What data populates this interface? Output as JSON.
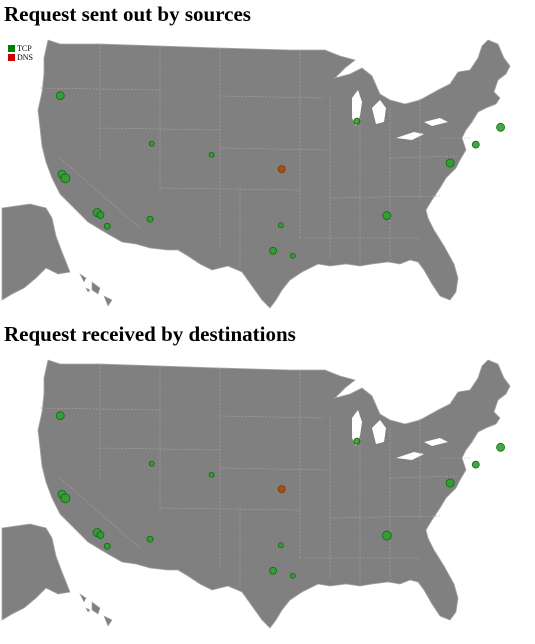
{
  "maps": [
    {
      "title": "Request sent out by sources",
      "points": [
        {
          "lon": -122.6,
          "lat": 45.5,
          "type": "TCP",
          "size": 4
        },
        {
          "lon": -87.9,
          "lat": 43.0,
          "type": "TCP",
          "size": 3
        },
        {
          "lon": -71.1,
          "lat": 42.4,
          "type": "TCP",
          "size": 4
        },
        {
          "lon": -74.0,
          "lat": 40.7,
          "type": "TCP",
          "size": 3.5
        },
        {
          "lon": -77.0,
          "lat": 38.9,
          "type": "TCP",
          "size": 4
        },
        {
          "lon": -111.9,
          "lat": 40.8,
          "type": "TCP",
          "size": 2.5
        },
        {
          "lon": -104.9,
          "lat": 39.7,
          "type": "TCP",
          "size": 2.5
        },
        {
          "lon": -122.4,
          "lat": 37.8,
          "type": "TCP",
          "size": 4
        },
        {
          "lon": -122.0,
          "lat": 37.4,
          "type": "TCP",
          "size": 4.5
        },
        {
          "lon": -96.7,
          "lat": 38.3,
          "type": "DNS",
          "size": 3.5
        },
        {
          "lon": -118.3,
          "lat": 34.05,
          "type": "TCP",
          "size": 4
        },
        {
          "lon": -117.9,
          "lat": 33.8,
          "type": "TCP",
          "size": 3.5
        },
        {
          "lon": -117.1,
          "lat": 32.7,
          "type": "TCP",
          "size": 3
        },
        {
          "lon": -112.1,
          "lat": 33.4,
          "type": "TCP",
          "size": 3
        },
        {
          "lon": -84.4,
          "lat": 33.75,
          "type": "TCP",
          "size": 4
        },
        {
          "lon": -96.8,
          "lat": 32.8,
          "type": "TCP",
          "size": 2.5
        },
        {
          "lon": -97.7,
          "lat": 30.3,
          "type": "TCP",
          "size": 3.5
        },
        {
          "lon": -95.4,
          "lat": 29.8,
          "type": "TCP",
          "size": 2.5
        }
      ]
    },
    {
      "title": "Request received by destinations",
      "points": [
        {
          "lon": -122.6,
          "lat": 45.5,
          "type": "TCP",
          "size": 4
        },
        {
          "lon": -87.9,
          "lat": 43.0,
          "type": "TCP",
          "size": 3
        },
        {
          "lon": -71.1,
          "lat": 42.4,
          "type": "TCP",
          "size": 4
        },
        {
          "lon": -74.0,
          "lat": 40.7,
          "type": "TCP",
          "size": 3.5
        },
        {
          "lon": -77.0,
          "lat": 38.9,
          "type": "TCP",
          "size": 4
        },
        {
          "lon": -111.9,
          "lat": 40.8,
          "type": "TCP",
          "size": 2.5
        },
        {
          "lon": -104.9,
          "lat": 39.7,
          "type": "TCP",
          "size": 2.5
        },
        {
          "lon": -122.4,
          "lat": 37.8,
          "type": "TCP",
          "size": 4
        },
        {
          "lon": -122.0,
          "lat": 37.4,
          "type": "TCP",
          "size": 4.5
        },
        {
          "lon": -96.7,
          "lat": 38.3,
          "type": "DNS",
          "size": 3.5
        },
        {
          "lon": -118.3,
          "lat": 34.05,
          "type": "TCP",
          "size": 4
        },
        {
          "lon": -117.9,
          "lat": 33.8,
          "type": "TCP",
          "size": 3.5
        },
        {
          "lon": -117.1,
          "lat": 32.7,
          "type": "TCP",
          "size": 3
        },
        {
          "lon": -112.1,
          "lat": 33.4,
          "type": "TCP",
          "size": 3
        },
        {
          "lon": -84.4,
          "lat": 33.75,
          "type": "TCP",
          "size": 4.5
        },
        {
          "lon": -96.8,
          "lat": 32.8,
          "type": "TCP",
          "size": 2.5
        },
        {
          "lon": -97.7,
          "lat": 30.3,
          "type": "TCP",
          "size": 3.5
        },
        {
          "lon": -95.4,
          "lat": 29.8,
          "type": "TCP",
          "size": 2.5
        }
      ]
    }
  ],
  "legend": [
    {
      "label": "TCP",
      "color": "#008000"
    },
    {
      "label": "DNS",
      "color": "#cc0000"
    }
  ],
  "colors": {
    "land": "#808080",
    "border": "#a6a6a6",
    "tcp_fill": "#2e9e2e",
    "tcp_stroke": "#116611",
    "dns_fill": "#b24a00",
    "dns_stroke": "#7a3300"
  }
}
